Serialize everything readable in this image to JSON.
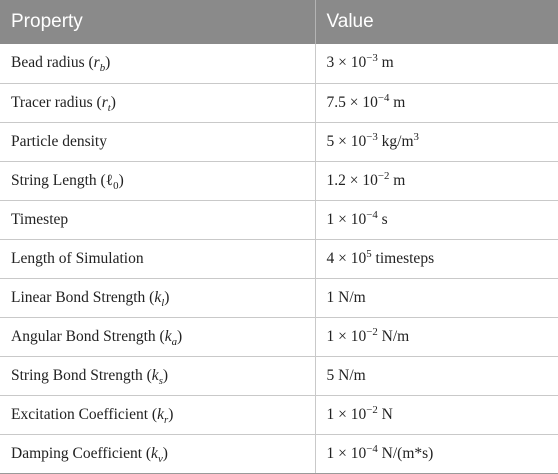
{
  "table": {
    "headers": [
      "Property",
      "Value"
    ],
    "rows": [
      {
        "property": {
          "label": "Bead radius (",
          "sym": "r",
          "sub": "b",
          "tail": ")"
        },
        "value": {
          "mant": "3 × 10",
          "exp": "−3",
          "unit": " m"
        }
      },
      {
        "property": {
          "label": "Tracer radius (",
          "sym": "r",
          "sub": "t",
          "tail": ")"
        },
        "value": {
          "mant": "7.5 × 10",
          "exp": "−4",
          "unit": " m"
        }
      },
      {
        "property": {
          "label": "Particle density",
          "sym": "",
          "sub": "",
          "tail": ""
        },
        "value": {
          "mant": "5 × 10",
          "exp": "−3",
          "unit": " kg/m",
          "unit_sup": "3"
        }
      },
      {
        "property": {
          "label": "String Length (ℓ",
          "sym": "",
          "sub": "0",
          "tail": ")"
        },
        "value": {
          "mant": "1.2 × 10",
          "exp": "−2",
          "unit": " m"
        }
      },
      {
        "property": {
          "label": "Timestep",
          "sym": "",
          "sub": "",
          "tail": ""
        },
        "value": {
          "mant": "1 × 10",
          "exp": "−4",
          "unit": " s"
        }
      },
      {
        "property": {
          "label": "Length of Simulation",
          "sym": "",
          "sub": "",
          "tail": ""
        },
        "value": {
          "mant": "4 × 10",
          "exp": "5",
          "unit": " timesteps"
        }
      },
      {
        "property": {
          "label": "Linear Bond Strength (",
          "sym": "k",
          "sub": "l",
          "tail": ")"
        },
        "value": {
          "mant": "",
          "exp": "",
          "unit": "1 N/m"
        }
      },
      {
        "property": {
          "label": "Angular Bond Strength (",
          "sym": "k",
          "sub": "a",
          "tail": ")"
        },
        "value": {
          "mant": "1 × 10",
          "exp": "−2",
          "unit": " N/m"
        }
      },
      {
        "property": {
          "label": "String Bond Strength (",
          "sym": "k",
          "sub": "s",
          "tail": ")"
        },
        "value": {
          "mant": "",
          "exp": "",
          "unit": "5 N/m"
        }
      },
      {
        "property": {
          "label": "Excitation Coefficient (",
          "sym": "k",
          "sub": "r",
          "tail": ")"
        },
        "value": {
          "mant": "1 × 10",
          "exp": "−2",
          "unit": " N"
        }
      },
      {
        "property": {
          "label": "Damping Coefficient (",
          "sym": "k",
          "sub": "v",
          "tail": ")"
        },
        "value": {
          "mant": "1 × 10",
          "exp": "−4",
          "unit": " N/(m*s)"
        }
      }
    ]
  },
  "colors": {
    "header_bg": "#8a8a8a",
    "header_text": "#ffffff",
    "row_border": "#c9c9c9",
    "body_text": "#222222"
  }
}
